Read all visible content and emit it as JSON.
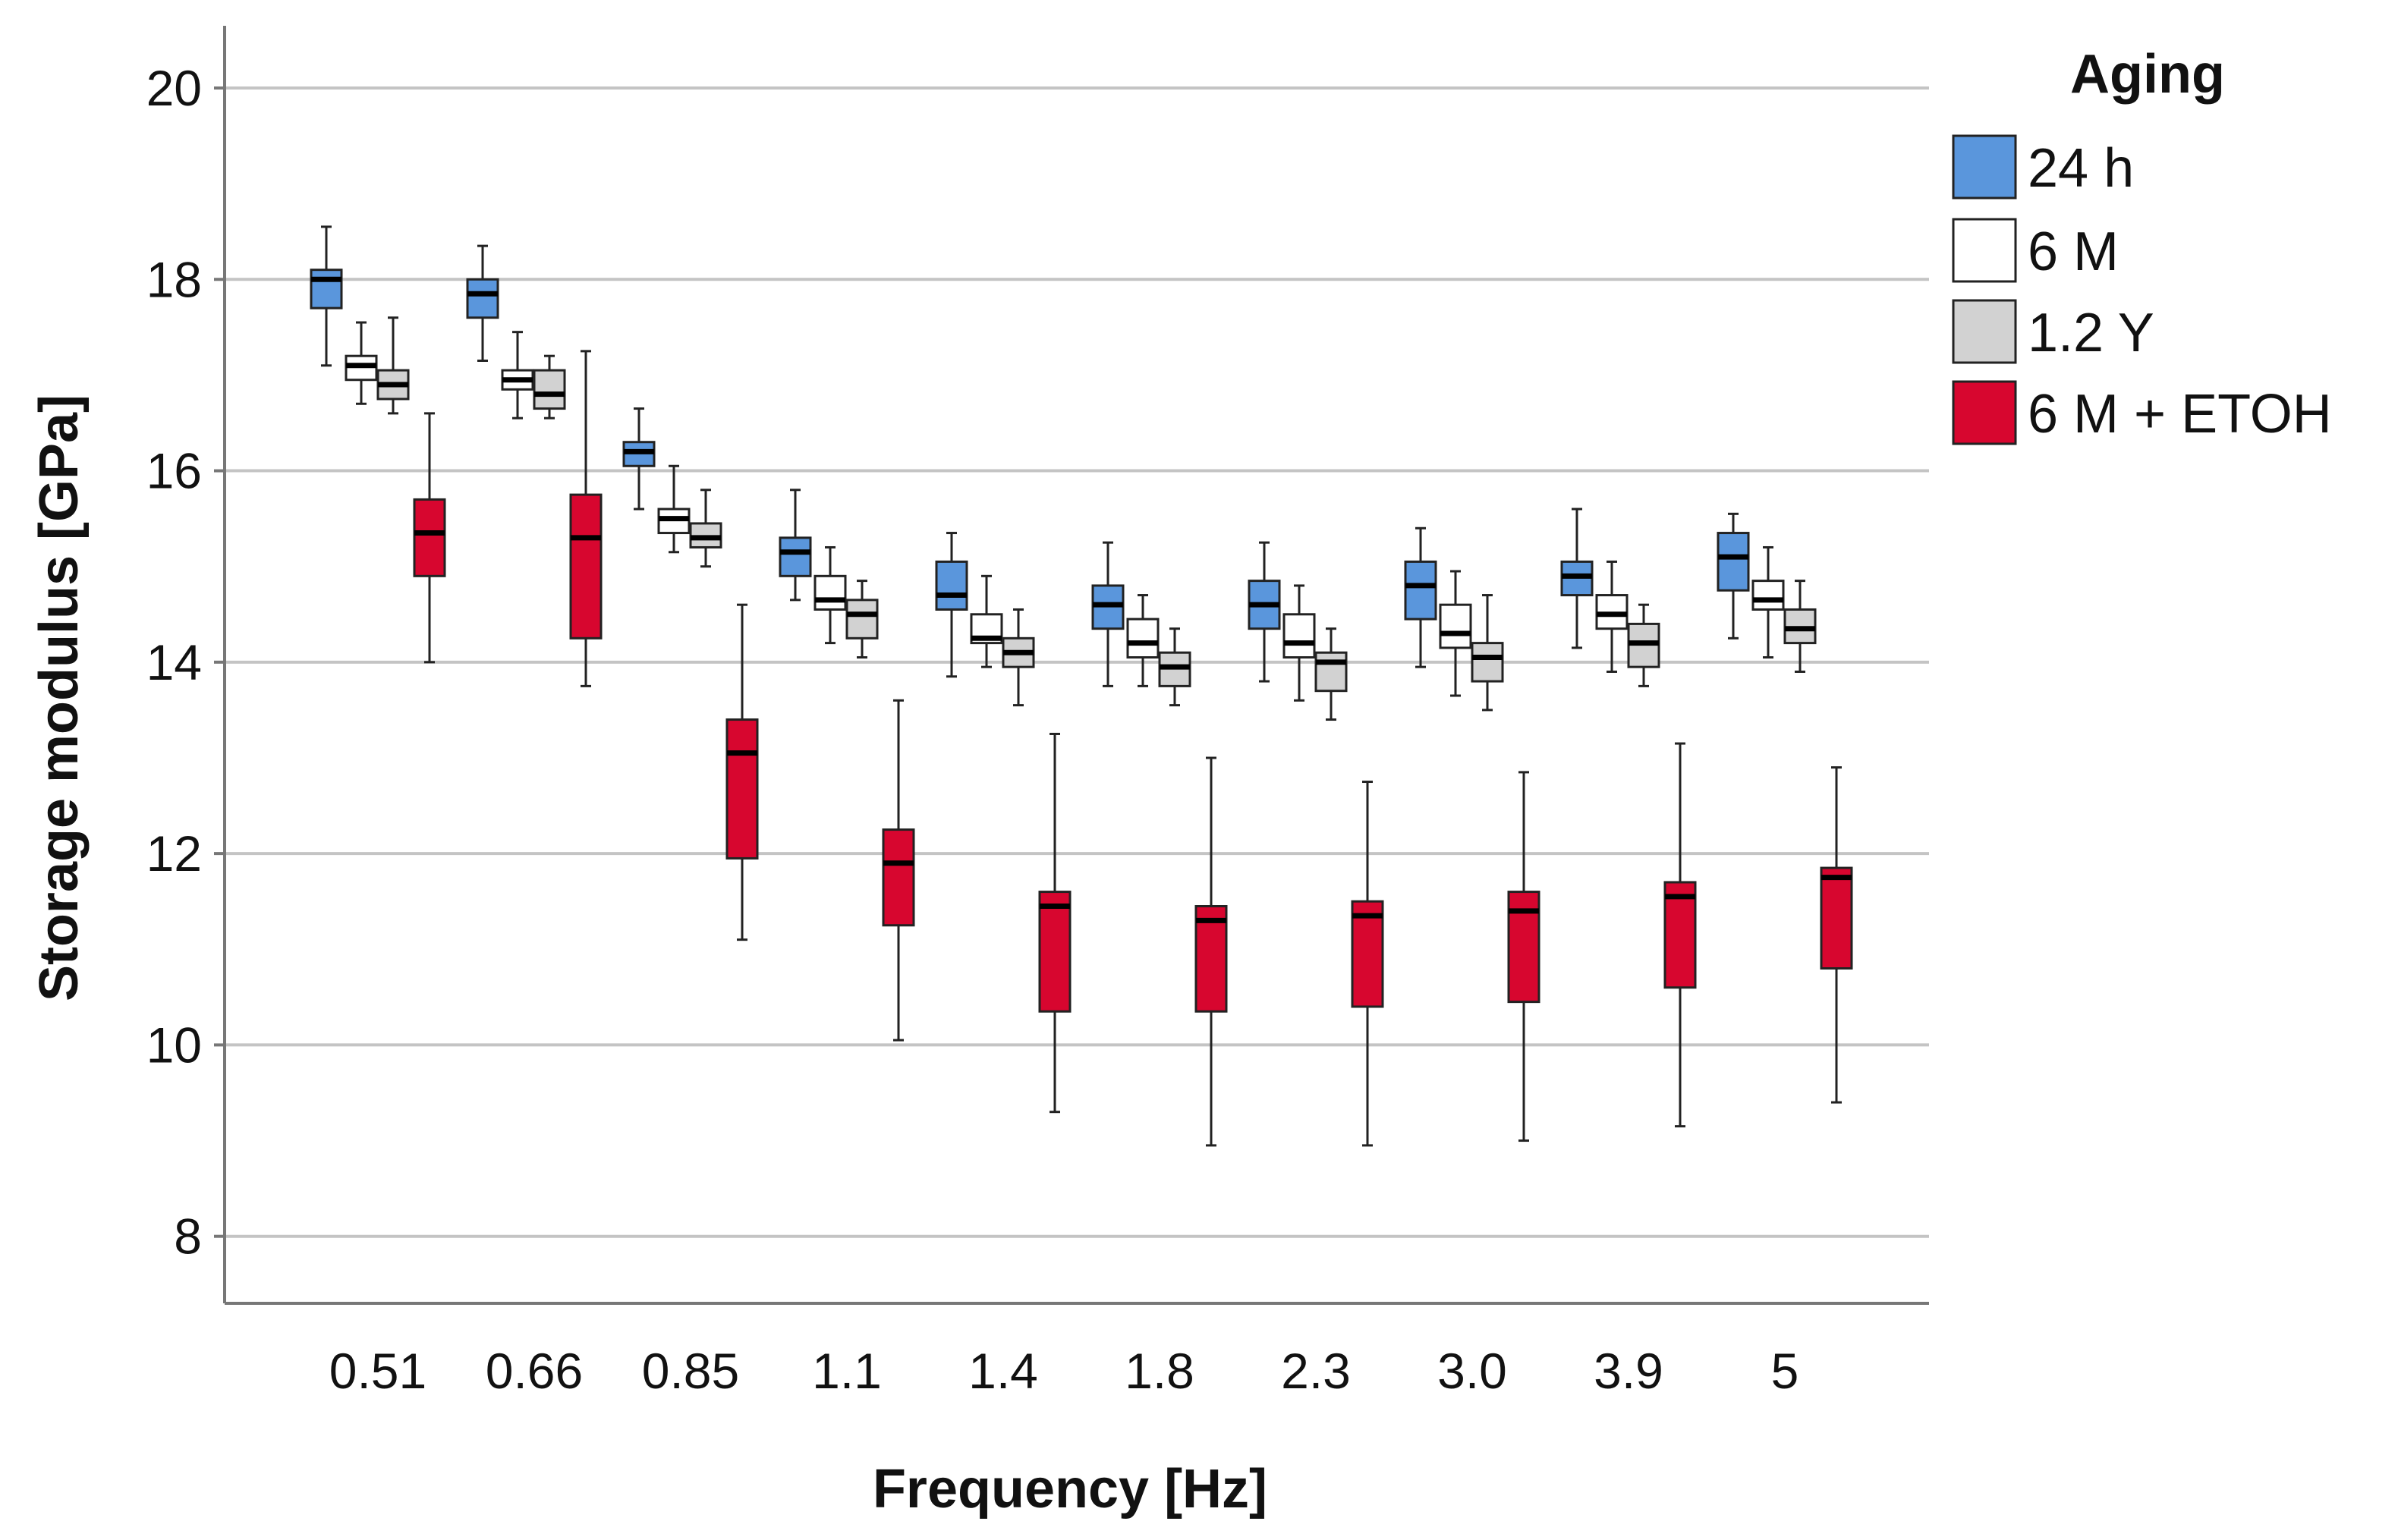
{
  "chart_data": {
    "type": "boxplot",
    "title": "",
    "xlabel": "Frequency [Hz]",
    "ylabel": "Storage modulus [GPa]",
    "ylim": [
      7.3,
      20.65
    ],
    "yticks": [
      8,
      10,
      12,
      14,
      16,
      18,
      20
    ],
    "grid": "horizontal",
    "legend_position": "top-right",
    "legend_title": "Aging",
    "categories": [
      "0.51",
      "0.66",
      "0.85",
      "1.1",
      "1.4",
      "1.8",
      "2.3",
      "3.0",
      "3.9",
      "5"
    ],
    "series": [
      {
        "name": "24 h",
        "color": "#5a96dc",
        "boxes": [
          {
            "min": 17.1,
            "q1": 17.7,
            "median": 18.0,
            "q3": 18.1,
            "max": 18.55
          },
          {
            "min": 17.15,
            "q1": 17.6,
            "median": 17.85,
            "q3": 18.0,
            "max": 18.35
          },
          {
            "min": 15.6,
            "q1": 16.05,
            "median": 16.2,
            "q3": 16.3,
            "max": 16.65
          },
          {
            "min": 14.65,
            "q1": 14.9,
            "median": 15.15,
            "q3": 15.3,
            "max": 15.8
          },
          {
            "min": 13.85,
            "q1": 14.55,
            "median": 14.7,
            "q3": 15.05,
            "max": 15.35
          },
          {
            "min": 13.75,
            "q1": 14.35,
            "median": 14.6,
            "q3": 14.8,
            "max": 15.25
          },
          {
            "min": 13.8,
            "q1": 14.35,
            "median": 14.6,
            "q3": 14.85,
            "max": 15.25
          },
          {
            "min": 13.95,
            "q1": 14.45,
            "median": 14.8,
            "q3": 15.05,
            "max": 15.4
          },
          {
            "min": 14.15,
            "q1": 14.7,
            "median": 14.9,
            "q3": 15.05,
            "max": 15.6
          },
          {
            "min": 14.25,
            "q1": 14.75,
            "median": 15.1,
            "q3": 15.35,
            "max": 15.55
          }
        ]
      },
      {
        "name": "6 M",
        "color": "#ffffff",
        "boxes": [
          {
            "min": 16.7,
            "q1": 16.95,
            "median": 17.1,
            "q3": 17.2,
            "max": 17.55
          },
          {
            "min": 16.55,
            "q1": 16.85,
            "median": 16.95,
            "q3": 17.05,
            "max": 17.45
          },
          {
            "min": 15.15,
            "q1": 15.35,
            "median": 15.5,
            "q3": 15.6,
            "max": 16.05
          },
          {
            "min": 14.2,
            "q1": 14.55,
            "median": 14.65,
            "q3": 14.9,
            "max": 15.2
          },
          {
            "min": 13.95,
            "q1": 14.2,
            "median": 14.25,
            "q3": 14.5,
            "max": 14.9
          },
          {
            "min": 13.75,
            "q1": 14.05,
            "median": 14.2,
            "q3": 14.45,
            "max": 14.7
          },
          {
            "min": 13.6,
            "q1": 14.05,
            "median": 14.2,
            "q3": 14.5,
            "max": 14.8
          },
          {
            "min": 13.65,
            "q1": 14.15,
            "median": 14.3,
            "q3": 14.6,
            "max": 14.95
          },
          {
            "min": 13.9,
            "q1": 14.35,
            "median": 14.5,
            "q3": 14.7,
            "max": 15.05
          },
          {
            "min": 14.05,
            "q1": 14.55,
            "median": 14.65,
            "q3": 14.85,
            "max": 15.2
          }
        ]
      },
      {
        "name": "1.2 Y",
        "color": "#d2d2d2",
        "boxes": [
          {
            "min": 16.6,
            "q1": 16.75,
            "median": 16.9,
            "q3": 17.05,
            "max": 17.6
          },
          {
            "min": 16.55,
            "q1": 16.65,
            "median": 16.8,
            "q3": 17.05,
            "max": 17.2
          },
          {
            "min": 15.0,
            "q1": 15.2,
            "median": 15.3,
            "q3": 15.45,
            "max": 15.8
          },
          {
            "min": 14.05,
            "q1": 14.25,
            "median": 14.5,
            "q3": 14.65,
            "max": 14.85
          },
          {
            "min": 13.55,
            "q1": 13.95,
            "median": 14.1,
            "q3": 14.25,
            "max": 14.55
          },
          {
            "min": 13.55,
            "q1": 13.75,
            "median": 13.95,
            "q3": 14.1,
            "max": 14.35
          },
          {
            "min": 13.4,
            "q1": 13.7,
            "median": 14.0,
            "q3": 14.1,
            "max": 14.35
          },
          {
            "min": 13.5,
            "q1": 13.8,
            "median": 14.05,
            "q3": 14.2,
            "max": 14.7
          },
          {
            "min": 13.75,
            "q1": 13.95,
            "median": 14.2,
            "q3": 14.4,
            "max": 14.6
          },
          {
            "min": 13.9,
            "q1": 14.2,
            "median": 14.35,
            "q3": 14.55,
            "max": 14.85
          }
        ]
      },
      {
        "name": "6 M + ETOH",
        "color": "#d7062f",
        "boxes": [
          {
            "min": 14.0,
            "q1": 14.9,
            "median": 15.35,
            "q3": 15.7,
            "max": 16.6
          },
          {
            "min": 13.75,
            "q1": 14.25,
            "median": 15.3,
            "q3": 15.75,
            "max": 17.25
          },
          {
            "min": 11.1,
            "q1": 11.95,
            "median": 13.05,
            "q3": 13.4,
            "max": 14.6
          },
          {
            "min": 10.05,
            "q1": 11.25,
            "median": 11.9,
            "q3": 12.25,
            "max": 13.6
          },
          {
            "min": 9.3,
            "q1": 10.35,
            "median": 11.45,
            "q3": 11.6,
            "max": 13.25
          },
          {
            "min": 8.95,
            "q1": 10.35,
            "median": 11.3,
            "q3": 11.45,
            "max": 13.0
          },
          {
            "min": 8.95,
            "q1": 10.4,
            "median": 11.35,
            "q3": 11.5,
            "max": 12.75
          },
          {
            "min": 9.0,
            "q1": 10.45,
            "median": 11.4,
            "q3": 11.6,
            "max": 12.85
          },
          {
            "min": 9.15,
            "q1": 10.6,
            "median": 11.55,
            "q3": 11.7,
            "max": 13.15
          },
          {
            "min": 9.4,
            "q1": 10.8,
            "median": 11.75,
            "q3": 11.85,
            "max": 12.9
          }
        ]
      }
    ]
  }
}
